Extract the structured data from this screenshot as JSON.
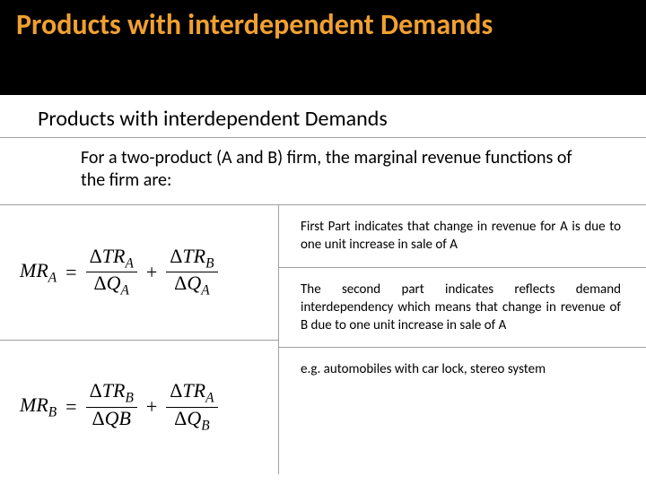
{
  "header": {
    "title": "Products with interdependent Demands",
    "title_color": "#f0a030",
    "background": "#000000"
  },
  "subtitle": "Products with interdependent Demands",
  "intro": "For a two-product (A and B) firm, the marginal revenue functions of the firm are:",
  "formulas": {
    "a": {
      "lhs": "MR",
      "lhs_sub": "A",
      "frac1_num_d": "Δ",
      "frac1_num_v": "TR",
      "frac1_num_s": "A",
      "frac1_den_d": "Δ",
      "frac1_den_v": "Q",
      "frac1_den_s": "A",
      "frac2_num_d": "Δ",
      "frac2_num_v": "TR",
      "frac2_num_s": "B",
      "frac2_den_d": "Δ",
      "frac2_den_v": "Q",
      "frac2_den_s": "A"
    },
    "b": {
      "lhs": "MR",
      "lhs_sub": "B",
      "frac1_num_d": "Δ",
      "frac1_num_v": "TR",
      "frac1_num_s": "B",
      "frac1_den_d": "Δ",
      "frac1_den_v": "QB",
      "frac1_den_s": "",
      "frac2_num_d": "Δ",
      "frac2_num_v": "TR",
      "frac2_num_s": "A",
      "frac2_den_d": "Δ",
      "frac2_den_v": "Q",
      "frac2_den_s": "B"
    }
  },
  "notes": {
    "n1": "First Part indicates that change in revenue for A is due to one unit increase in sale of A",
    "n2": "The second part indicates reflects demand interdependency which means that change in revenue of B due to one unit increase in sale of A",
    "n3": "e.g. automobiles with car lock, stereo system"
  },
  "styles": {
    "divider_color": "#a0a0a0",
    "body_font": "Calibri",
    "formula_font": "Times New Roman",
    "note_fontsize": 15,
    "subtitle_fontsize": 24,
    "intro_fontsize": 20,
    "header_fontsize": 32
  }
}
